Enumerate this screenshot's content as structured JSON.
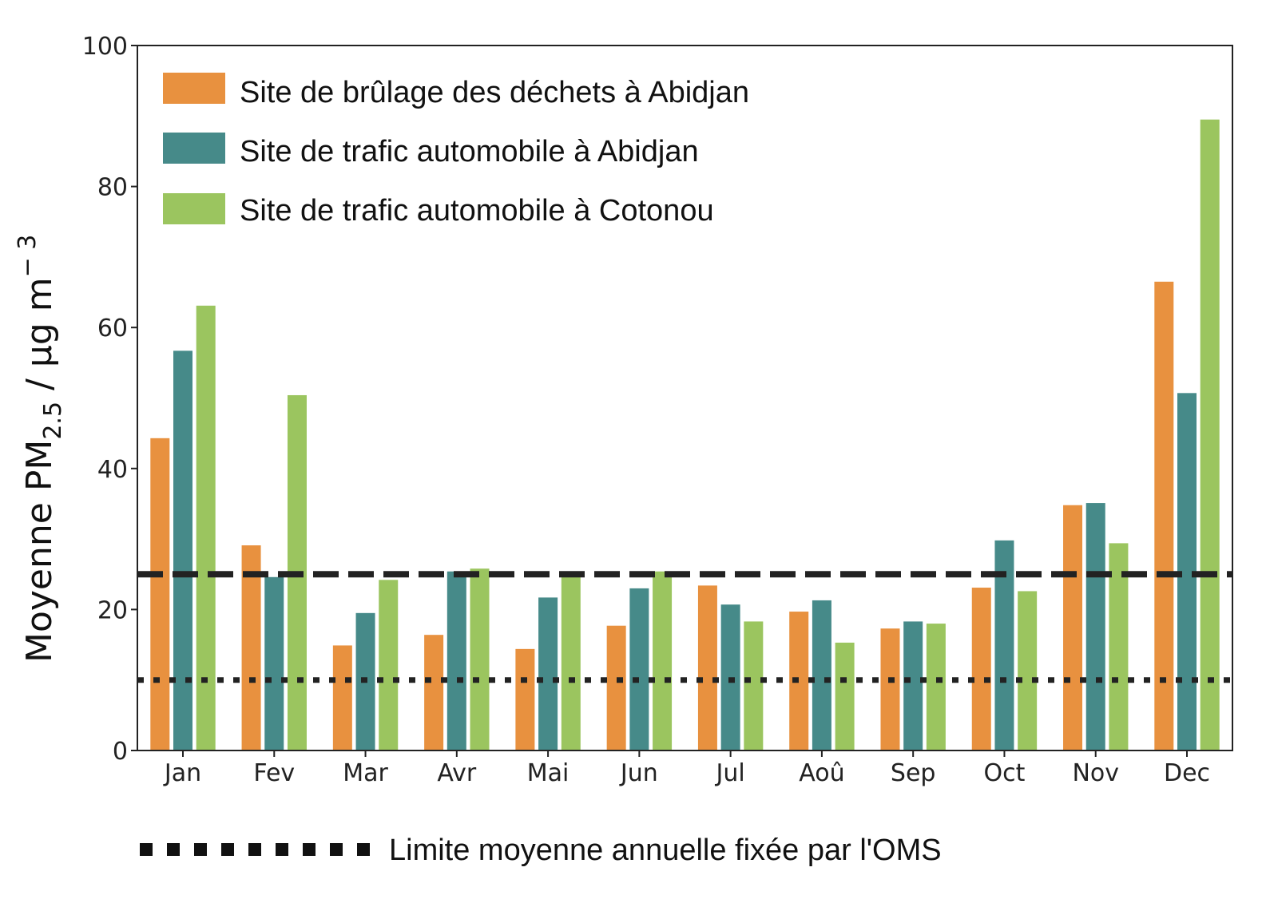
{
  "chart_data": {
    "type": "bar",
    "title": "",
    "xlabel": "",
    "ylabel": "Moyenne PM",
    "ylabel_sub": "2.5",
    "ylabel_unit": " / µg m",
    "ylabel_sup": "− 3",
    "ylim": [
      0,
      100
    ],
    "yticks": [
      "0",
      "20",
      "40",
      "60",
      "80",
      "100"
    ],
    "grid": false,
    "legend_position": "top-left",
    "categories": [
      "Jan",
      "Fev",
      "Mar",
      "Avr",
      "Mai",
      "Jun",
      "Jul",
      "Aoû",
      "Sep",
      "Oct",
      "Nov",
      "Dec"
    ],
    "series": [
      {
        "name": "Site de brûlage des déchets à Abidjan",
        "color": "#E8913F",
        "values": [
          44.3,
          29.1,
          14.9,
          16.4,
          14.4,
          17.7,
          23.4,
          19.7,
          17.3,
          23.1,
          34.8,
          66.5
        ]
      },
      {
        "name": "Site de trafic automobile à Abidjan",
        "color": "#468A89",
        "values": [
          56.7,
          24.6,
          19.5,
          25.4,
          21.7,
          23.0,
          20.7,
          21.3,
          18.3,
          29.8,
          35.1,
          50.7
        ]
      },
      {
        "name": "Site de trafic automobile à Cotonou",
        "color": "#9BC55F",
        "values": [
          63.1,
          50.4,
          24.2,
          25.8,
          24.7,
          25.4,
          18.3,
          15.3,
          18.0,
          22.6,
          29.4,
          89.5
        ]
      }
    ],
    "reference_lines": [
      {
        "value": 25,
        "style": "dashed",
        "label": ""
      },
      {
        "value": 10,
        "style": "dotted",
        "label": "Limite moyenne annuelle fixée par l'OMS"
      }
    ]
  }
}
